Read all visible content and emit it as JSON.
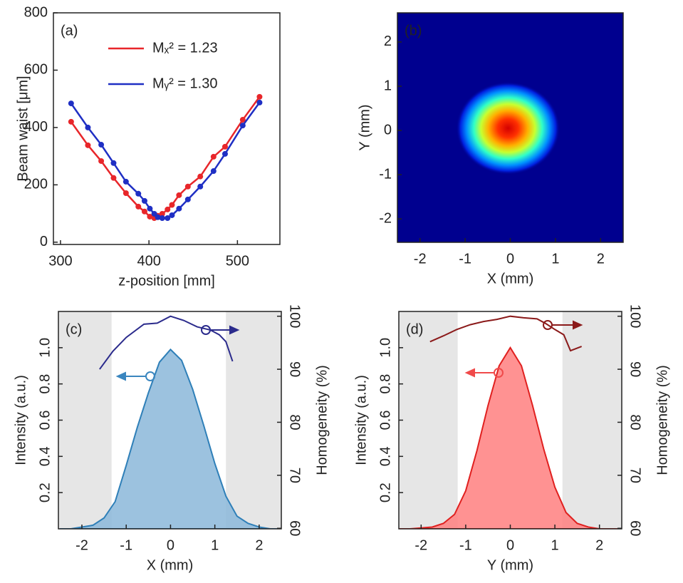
{
  "chart_data": [
    {
      "type": "line",
      "label": "(a)",
      "xlabel": "z-position [mm]",
      "ylabel": "Beam waist [μm]",
      "x": [
        312,
        331,
        346,
        360,
        374,
        388,
        395,
        401,
        406,
        410,
        415,
        421,
        426,
        434,
        444,
        458,
        473,
        486,
        506,
        525
      ],
      "series": [
        {
          "name": "Mₓ² = 1.23",
          "color": "#e8262a",
          "values": [
            420,
            338,
            283,
            224,
            171,
            124,
            107,
            89,
            84,
            92,
            99,
            114,
            130,
            164,
            194,
            229,
            298,
            333,
            427,
            507
          ]
        },
        {
          "name": "Mᵧ² = 1.30",
          "color": "#1f2fc4",
          "values": [
            484,
            400,
            340,
            276,
            211,
            169,
            144,
            117,
            99,
            87,
            84,
            84,
            94,
            117,
            149,
            194,
            248,
            308,
            407,
            487
          ]
        }
      ],
      "xlim": [
        292,
        548
      ],
      "ylim": [
        -8,
        800
      ],
      "xticks": [
        300,
        400,
        500
      ],
      "yticks": [
        0,
        200,
        400,
        600,
        800
      ]
    },
    {
      "type": "beam",
      "label": "(b)",
      "xlabel": "X (mm)",
      "ylabel": "Y (mm)",
      "colormap": "jet",
      "beam_center": [
        -0.05,
        0.05
      ],
      "beam_radius": [
        1.15,
        1.05
      ],
      "xlim": [
        -2.5,
        2.5
      ],
      "ylim": [
        -2.53,
        2.66
      ],
      "xticks": [
        -2,
        -1,
        0,
        1,
        2
      ],
      "yticks": [
        -2,
        -1,
        0,
        1,
        2
      ]
    },
    {
      "type": "area",
      "label": "(c)",
      "xlabel": "X (mm)",
      "ylabel": "Intensity (a.u.)",
      "y2label": "Homogeneity (%)",
      "homogeneous_range": [
        -1.33,
        1.25
      ],
      "x": [
        -2.5,
        -2.25,
        -2,
        -1.75,
        -1.5,
        -1.25,
        -1,
        -0.75,
        -0.5,
        -0.25,
        0,
        0.25,
        0.5,
        0.75,
        1,
        1.25,
        1.5,
        1.75,
        2,
        2.25,
        2.5
      ],
      "series": [
        {
          "name": "Intensity",
          "color": "#2e7fb8",
          "fill": "#8bb7d9",
          "values": [
            0,
            0,
            0.01,
            0.02,
            0.06,
            0.15,
            0.35,
            0.56,
            0.75,
            0.92,
            0.99,
            0.93,
            0.77,
            0.57,
            0.36,
            0.18,
            0.07,
            0.03,
            0.01,
            0,
            0
          ]
        },
        {
          "name": "Homogeneity",
          "color": "#2b2b8c",
          "axis": "y2",
          "x": [
            -1.6,
            -1.3,
            -1,
            -0.6,
            -0.3,
            0,
            0.3,
            0.6,
            0.9,
            1.1,
            1.25,
            1.4
          ],
          "values": [
            90,
            93.4,
            96,
            98.5,
            98.7,
            100,
            99.2,
            98,
            97.4,
            96.5,
            95.2,
            91.5
          ]
        }
      ],
      "xlim": [
        -2.53,
        2.5
      ],
      "ylim": [
        0,
        1.2
      ],
      "y2lim": [
        59.9,
        100.9
      ],
      "xticks": [
        -2,
        -1,
        0,
        1,
        2
      ],
      "yticks": [
        0.2,
        0.4,
        0.6,
        0.8,
        {
          "value": 1,
          "label": "1.0"
        }
      ],
      "y2ticks": [
        60,
        70,
        80,
        90,
        100
      ]
    },
    {
      "type": "area",
      "label": "(d)",
      "xlabel": "Y (mm)",
      "ylabel": "Intensity (a.u.)",
      "y2label": "Homogeneity (%)",
      "homogeneous_range": [
        -1.18,
        1.17
      ],
      "x": [
        -2.5,
        -2.25,
        -2,
        -1.75,
        -1.5,
        -1.25,
        -1,
        -0.75,
        -0.5,
        -0.25,
        0,
        0.25,
        0.5,
        0.75,
        1,
        1.25,
        1.5,
        1.75,
        2,
        2.25,
        2.5
      ],
      "series": [
        {
          "name": "Intensity",
          "color": "#e0201f",
          "fill": "#ff7f7f",
          "values": [
            0,
            0,
            0.005,
            0.01,
            0.03,
            0.08,
            0.21,
            0.43,
            0.68,
            0.9,
            1,
            0.9,
            0.68,
            0.44,
            0.23,
            0.09,
            0.03,
            0.01,
            0,
            0,
            0
          ]
        },
        {
          "name": "Homogeneity",
          "color": "#8b1a1a",
          "axis": "y2",
          "x": [
            -1.8,
            -1.5,
            -1.2,
            -0.9,
            -0.6,
            -0.3,
            0,
            0.3,
            0.6,
            0.8,
            1,
            1.2,
            1.35,
            1.6
          ],
          "values": [
            95.2,
            96.3,
            97.5,
            98.4,
            99,
            99.4,
            100,
            99.7,
            99.5,
            98.6,
            97.5,
            96.5,
            93.5,
            94.3
          ]
        }
      ],
      "xlim": [
        -2.5,
        2.5
      ],
      "ylim": [
        0,
        1.2
      ],
      "y2lim": [
        59.9,
        100.9
      ],
      "xticks": [
        -2,
        -1,
        0,
        1,
        2
      ],
      "yticks": [
        0.2,
        0.4,
        0.6,
        0.8,
        {
          "value": 1,
          "label": "1.0"
        }
      ],
      "y2ticks": [
        60,
        70,
        80,
        90,
        100
      ]
    }
  ]
}
